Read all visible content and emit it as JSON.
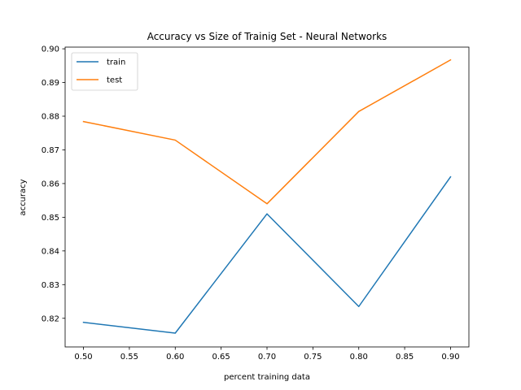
{
  "chart_data": {
    "type": "line",
    "title": "Accuracy vs Size of Trainig Set - Neural Networks",
    "xlabel": "percent training data",
    "ylabel": "accuracy",
    "x": [
      0.5,
      0.6,
      0.7,
      0.8,
      0.9
    ],
    "xlim": [
      0.48,
      0.92
    ],
    "ylim": [
      0.8115,
      0.9005
    ],
    "xticks": [
      "0.50",
      "0.55",
      "0.60",
      "0.65",
      "0.70",
      "0.75",
      "0.80",
      "0.85",
      "0.90"
    ],
    "yticks": [
      "0.82",
      "0.83",
      "0.84",
      "0.85",
      "0.86",
      "0.87",
      "0.88",
      "0.89",
      "0.90"
    ],
    "grid": false,
    "legend_position": "top-left",
    "series": [
      {
        "name": "train",
        "color": "#1f77b4",
        "values": [
          0.8188,
          0.8156,
          0.851,
          0.8235,
          0.862
        ]
      },
      {
        "name": "test",
        "color": "#ff7f0e",
        "values": [
          0.8784,
          0.8729,
          0.854,
          0.8814,
          0.8967
        ]
      }
    ]
  }
}
